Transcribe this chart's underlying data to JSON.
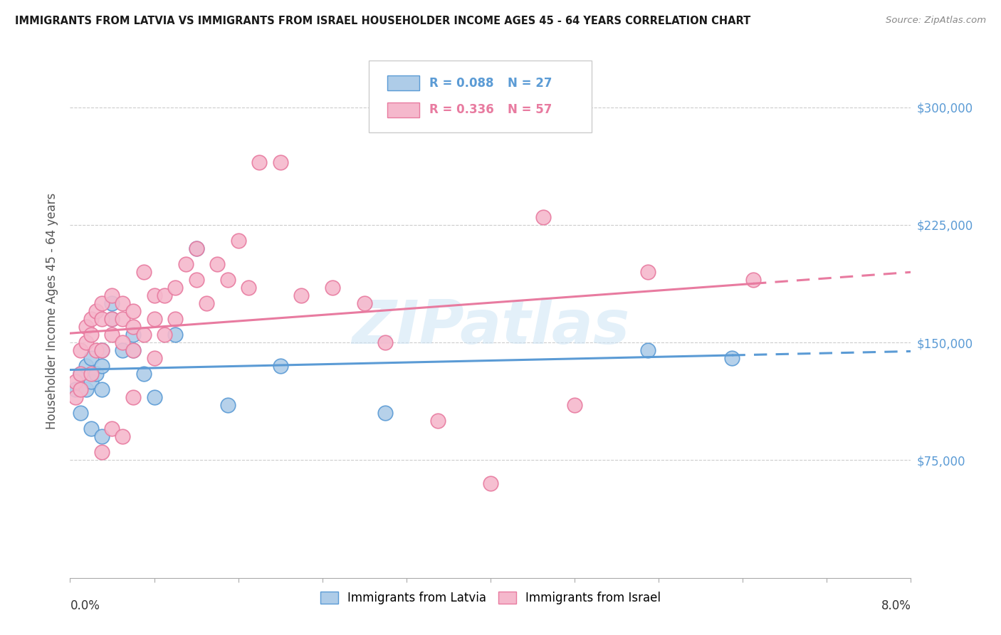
{
  "title": "IMMIGRANTS FROM LATVIA VS IMMIGRANTS FROM ISRAEL HOUSEHOLDER INCOME AGES 45 - 64 YEARS CORRELATION CHART",
  "source": "Source: ZipAtlas.com",
  "ylabel": "Householder Income Ages 45 - 64 years",
  "x_min": 0.0,
  "x_max": 0.08,
  "y_min": 0,
  "y_max": 340000,
  "yticks": [
    75000,
    150000,
    225000,
    300000
  ],
  "ytick_labels": [
    "$75,000",
    "$150,000",
    "$225,000",
    "$300,000"
  ],
  "latvia_R": 0.088,
  "latvia_N": 27,
  "israel_R": 0.336,
  "israel_N": 57,
  "latvia_color": "#5b9bd5",
  "latvia_color_fill": "#aecce8",
  "israel_color": "#e87ba0",
  "israel_color_fill": "#f5b8cc",
  "background_color": "#ffffff",
  "grid_color": "#cccccc",
  "watermark_color": "#ddeeff",
  "latvia_scatter_x": [
    0.0005,
    0.001,
    0.001,
    0.0015,
    0.0015,
    0.002,
    0.002,
    0.002,
    0.0025,
    0.003,
    0.003,
    0.003,
    0.003,
    0.004,
    0.004,
    0.005,
    0.006,
    0.006,
    0.007,
    0.008,
    0.01,
    0.012,
    0.015,
    0.02,
    0.03,
    0.055,
    0.063
  ],
  "latvia_scatter_y": [
    120000,
    130000,
    105000,
    135000,
    120000,
    140000,
    125000,
    95000,
    130000,
    145000,
    135000,
    120000,
    90000,
    175000,
    165000,
    145000,
    155000,
    145000,
    130000,
    115000,
    155000,
    210000,
    110000,
    135000,
    105000,
    145000,
    140000
  ],
  "israel_scatter_x": [
    0.0005,
    0.0005,
    0.001,
    0.001,
    0.001,
    0.0015,
    0.0015,
    0.002,
    0.002,
    0.002,
    0.0025,
    0.0025,
    0.003,
    0.003,
    0.003,
    0.003,
    0.004,
    0.004,
    0.004,
    0.004,
    0.005,
    0.005,
    0.005,
    0.005,
    0.006,
    0.006,
    0.006,
    0.006,
    0.007,
    0.007,
    0.008,
    0.008,
    0.008,
    0.009,
    0.009,
    0.01,
    0.01,
    0.011,
    0.012,
    0.012,
    0.013,
    0.014,
    0.015,
    0.016,
    0.017,
    0.018,
    0.02,
    0.022,
    0.025,
    0.028,
    0.03,
    0.035,
    0.04,
    0.045,
    0.048,
    0.055,
    0.065
  ],
  "israel_scatter_y": [
    125000,
    115000,
    145000,
    130000,
    120000,
    160000,
    150000,
    165000,
    155000,
    130000,
    170000,
    145000,
    175000,
    165000,
    145000,
    80000,
    180000,
    165000,
    155000,
    95000,
    175000,
    165000,
    150000,
    90000,
    170000,
    160000,
    145000,
    115000,
    195000,
    155000,
    180000,
    165000,
    140000,
    180000,
    155000,
    185000,
    165000,
    200000,
    210000,
    190000,
    175000,
    200000,
    190000,
    215000,
    185000,
    265000,
    265000,
    180000,
    185000,
    175000,
    150000,
    100000,
    60000,
    230000,
    110000,
    195000,
    190000
  ]
}
